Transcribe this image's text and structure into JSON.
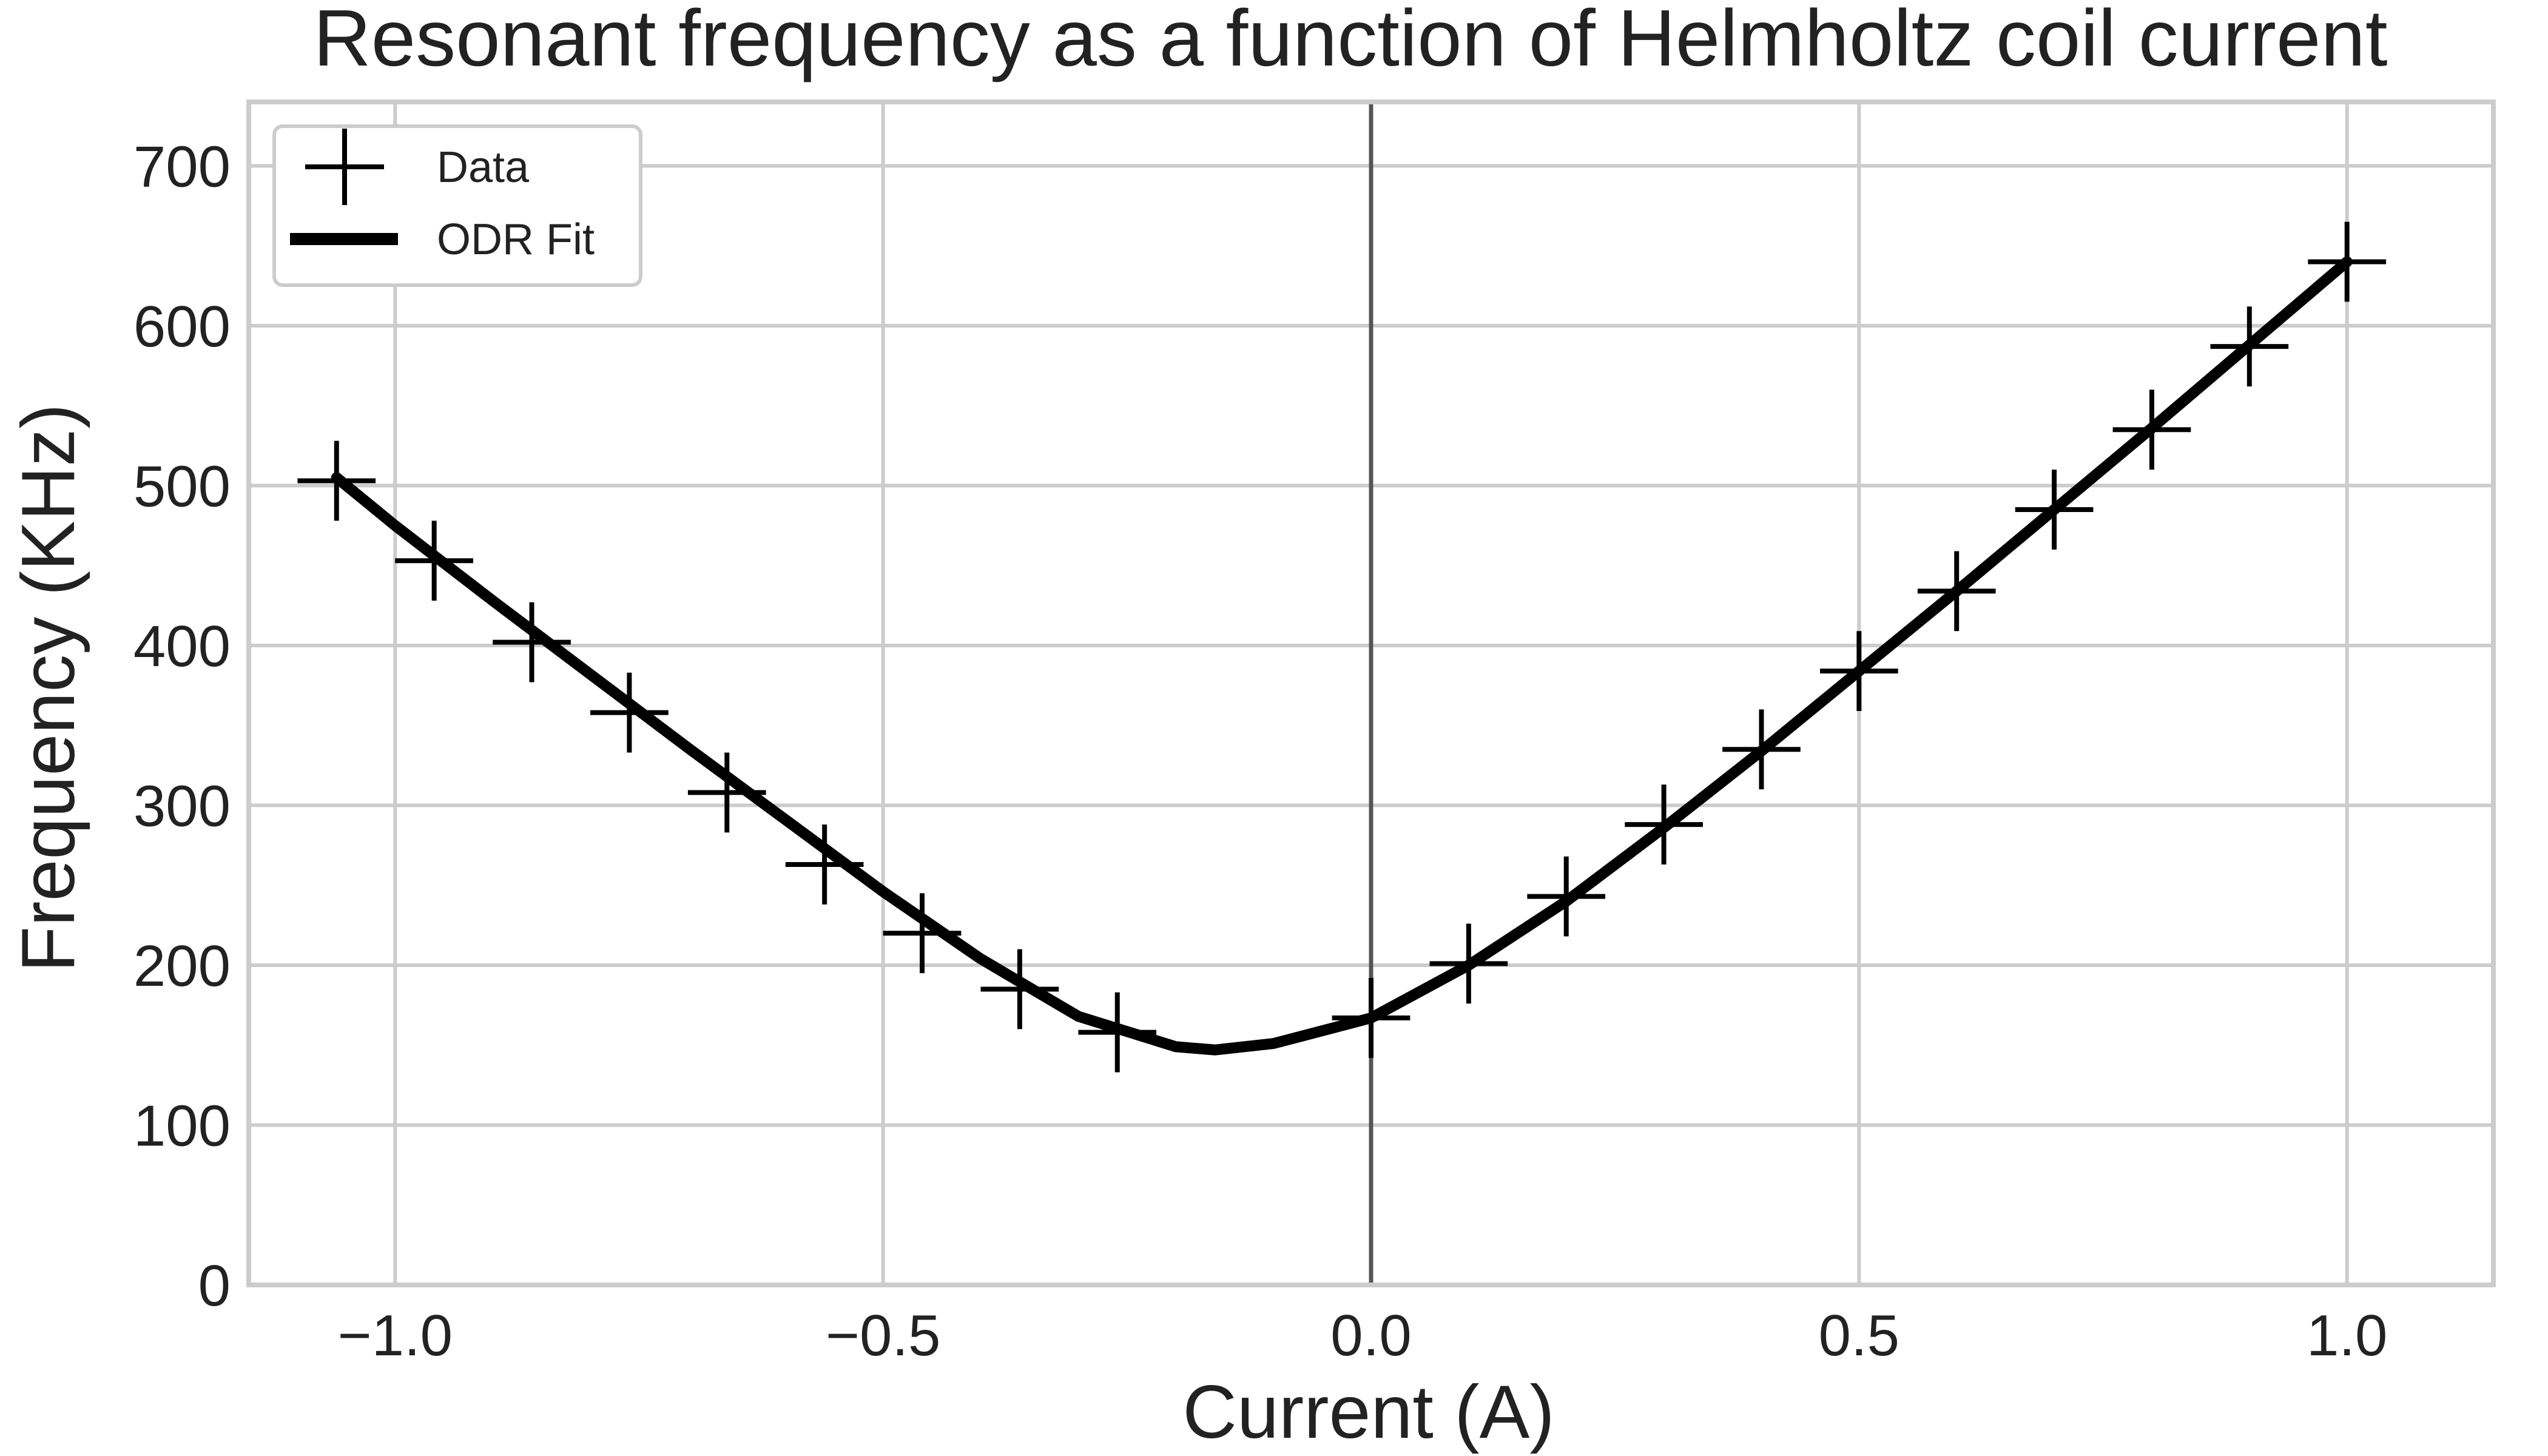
{
  "chart_data": {
    "type": "scatter",
    "title": "Resonant frequency as a function of Helmholtz coil current",
    "xlabel": "Current (A)",
    "ylabel": "Frequency (KHz)",
    "xlim": [
      -1.15,
      1.15
    ],
    "ylim": [
      0,
      740
    ],
    "xticks": [
      -1.0,
      -0.5,
      0.0,
      0.5,
      1.0
    ],
    "xtick_labels": [
      "−1.0",
      "−0.5",
      "0.0",
      "0.5",
      "1.0"
    ],
    "yticks": [
      0,
      100,
      200,
      300,
      400,
      500,
      600,
      700
    ],
    "ytick_labels": [
      "0",
      "100",
      "200",
      "300",
      "400",
      "500",
      "600",
      "700"
    ],
    "grid": true,
    "zero_line_x": 0.0,
    "legend_position": "top-left",
    "legend": [
      {
        "label": "Data",
        "marker": "plus"
      },
      {
        "label": "ODR Fit",
        "marker": "line"
      }
    ],
    "colors": {
      "data": "#000000",
      "fit": "#000000",
      "grid": "#cccccc",
      "zero_line": "#555555",
      "spine": "#cccccc"
    },
    "series": [
      {
        "name": "Data",
        "style": "errorbar-plus",
        "x": [
          -1.06,
          -0.96,
          -0.86,
          -0.76,
          -0.66,
          -0.56,
          -0.46,
          -0.36,
          -0.26,
          0.0,
          0.1,
          0.2,
          0.3,
          0.4,
          0.5,
          0.6,
          0.7,
          0.8,
          0.9,
          1.0
        ],
        "y": [
          503,
          453,
          402,
          358,
          308,
          263,
          220,
          185,
          158,
          167,
          201,
          243,
          288,
          335,
          384,
          434,
          485,
          535,
          587,
          640
        ],
        "xerr": 0.04,
        "yerr": 25
      },
      {
        "name": "ODR Fit",
        "style": "line",
        "x": [
          -1.06,
          -1.0,
          -0.9,
          -0.8,
          -0.7,
          -0.6,
          -0.5,
          -0.4,
          -0.3,
          -0.2,
          -0.16,
          -0.1,
          0.0,
          0.1,
          0.2,
          0.3,
          0.4,
          0.5,
          0.6,
          0.7,
          0.8,
          0.9,
          1.0
        ],
        "y": [
          505,
          475,
          428,
          382,
          336,
          291,
          246,
          204,
          168,
          149,
          147,
          151,
          167,
          200,
          240,
          286,
          334,
          384,
          434,
          485,
          536,
          588,
          640
        ]
      }
    ]
  }
}
